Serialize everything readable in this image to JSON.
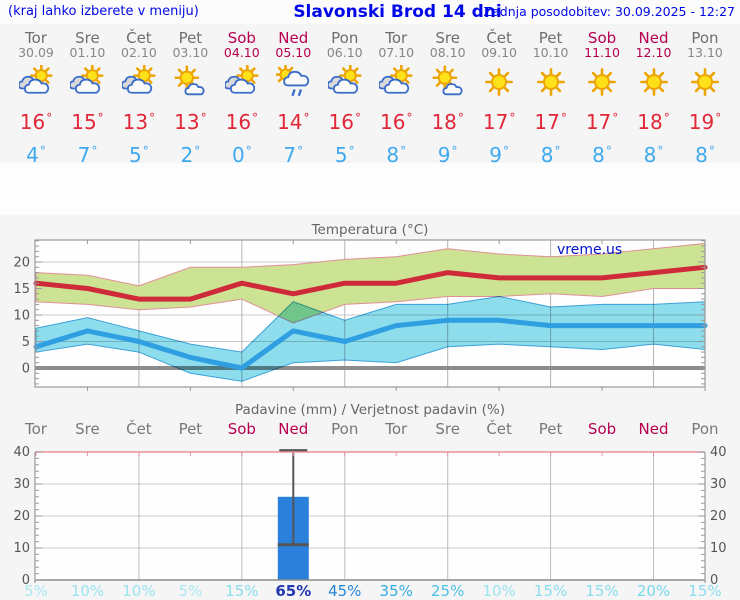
{
  "header": {
    "left_note": "(kraj lahko izberete v meniju)",
    "title": "Slavonski Brod 14 dni",
    "updated": "Zadnja posodobitev: 30.09.2025 - 12:27"
  },
  "degree_symbol": "°",
  "forecast_days": [
    {
      "day": "Tor",
      "date": "30.09",
      "weekend": false,
      "icon": "partly-cloudy",
      "high": "16",
      "low": "4"
    },
    {
      "day": "Sre",
      "date": "01.10",
      "weekend": false,
      "icon": "partly-cloudy",
      "high": "15",
      "low": "7"
    },
    {
      "day": "Čet",
      "date": "02.10",
      "weekend": false,
      "icon": "partly-cloudy",
      "high": "13",
      "low": "5"
    },
    {
      "day": "Pet",
      "date": "03.10",
      "weekend": false,
      "icon": "mostly-sunny",
      "high": "13",
      "low": "2"
    },
    {
      "day": "Sob",
      "date": "04.10",
      "weekend": true,
      "icon": "partly-cloudy",
      "high": "16",
      "low": "0"
    },
    {
      "day": "Ned",
      "date": "05.10",
      "weekend": true,
      "icon": "rain-showers",
      "high": "14",
      "low": "7"
    },
    {
      "day": "Pon",
      "date": "06.10",
      "weekend": false,
      "icon": "partly-cloudy",
      "high": "16",
      "low": "5"
    },
    {
      "day": "Tor",
      "date": "07.10",
      "weekend": false,
      "icon": "partly-cloudy",
      "high": "16",
      "low": "8"
    },
    {
      "day": "Sre",
      "date": "08.10",
      "weekend": false,
      "icon": "mostly-sunny",
      "high": "18",
      "low": "9"
    },
    {
      "day": "Čet",
      "date": "09.10",
      "weekend": false,
      "icon": "sunny",
      "high": "17",
      "low": "9"
    },
    {
      "day": "Pet",
      "date": "10.10",
      "weekend": false,
      "icon": "sunny",
      "high": "17",
      "low": "8"
    },
    {
      "day": "Sob",
      "date": "11.10",
      "weekend": true,
      "icon": "sunny",
      "high": "17",
      "low": "8"
    },
    {
      "day": "Ned",
      "date": "12.10",
      "weekend": true,
      "icon": "sunny",
      "high": "18",
      "low": "8"
    },
    {
      "day": "Pon",
      "date": "13.10",
      "weekend": false,
      "icon": "sunny",
      "high": "19",
      "low": "8"
    }
  ],
  "chart_data": [
    {
      "type": "line",
      "title": "Temperatura (°C)",
      "watermark": "vreme.us",
      "categories": [
        "Tor",
        "Sre",
        "Čet",
        "Pet",
        "Sob",
        "Ned",
        "Pon",
        "Tor",
        "Sre",
        "Čet",
        "Pet",
        "Sob",
        "Ned",
        "Pon"
      ],
      "yticks": [
        0,
        5,
        10,
        15,
        20
      ],
      "ylim": [
        -3.6,
        24.2
      ],
      "grid": true,
      "zero_line": true,
      "series": [
        {
          "name": "max-temperature",
          "color": "#cf2a3a",
          "values": [
            16,
            15,
            13,
            13,
            16,
            14,
            16,
            16,
            18,
            17,
            17,
            17,
            18,
            19
          ]
        },
        {
          "name": "min-temperature",
          "color": "#2f9fe2",
          "values": [
            4,
            7,
            5,
            2,
            0,
            7,
            5,
            8,
            9,
            9,
            8,
            8,
            8,
            8
          ]
        }
      ],
      "bands": [
        {
          "name": "max-uncertainty-band",
          "fill": "#cde394",
          "edge": "#e09095",
          "high": [
            18,
            17.5,
            15.5,
            19,
            19,
            19.5,
            20.5,
            21,
            22.5,
            21.5,
            21,
            21.5,
            22.5,
            23.5
          ],
          "low": [
            12.5,
            12,
            11,
            11.5,
            13,
            8.5,
            12,
            12.5,
            13.5,
            13.5,
            14,
            13.5,
            15,
            15
          ]
        },
        {
          "name": "min-uncertainty-band",
          "fill": "#8edeee",
          "edge": "#3aa2da",
          "high": [
            7.5,
            9.5,
            7,
            4.5,
            3,
            12.5,
            9,
            12,
            12,
            13.5,
            11.5,
            12,
            12,
            12.5
          ],
          "low": [
            3,
            4.5,
            3,
            -1,
            -2.5,
            1,
            1.5,
            1,
            4,
            4.5,
            4,
            3.5,
            4.5,
            3.5
          ]
        }
      ]
    },
    {
      "type": "bar",
      "title": "Padavine (mm) / Verjetnost padavin (%)",
      "categories": [
        "Tor",
        "Sre",
        "Čet",
        "Pet",
        "Sob",
        "Ned",
        "Pon",
        "Tor",
        "Sre",
        "Čet",
        "Pet",
        "Sob",
        "Ned",
        "Pon"
      ],
      "weekend_flags": [
        false,
        false,
        false,
        false,
        true,
        true,
        false,
        false,
        false,
        false,
        false,
        true,
        true,
        false
      ],
      "yticks": [
        0,
        10,
        20,
        30,
        40
      ],
      "ylim": [
        0,
        40
      ],
      "bar_color": "#2b80dc",
      "values": [
        0,
        0,
        0,
        0,
        0,
        26,
        0,
        0,
        0,
        0,
        0,
        0,
        0,
        0
      ],
      "error_bars": [
        {
          "index": 5,
          "low": 11,
          "high": 40.5
        }
      ],
      "probabilities": [
        "5%",
        "10%",
        "10%",
        "5%",
        "15%",
        "65%",
        "45%",
        "35%",
        "25%",
        "10%",
        "15%",
        "15%",
        "20%",
        "15%"
      ],
      "probability_colors": {
        "5%": "#abe9f3",
        "10%": "#9ae4f0",
        "15%": "#88deee",
        "20%": "#77d7ec",
        "25%": "#4cc1e7",
        "35%": "#35ace2",
        "45%": "#2585d8",
        "65%": "#2137b0"
      }
    }
  ],
  "colors": {
    "header_text": "#0008e8",
    "weekend": "#b80050",
    "weekday": "#6e6e6e",
    "high_temp": "#e22739",
    "low_temp": "#3fa9f0",
    "zero_line": "#8c8c8c",
    "whisker": "#555555"
  }
}
